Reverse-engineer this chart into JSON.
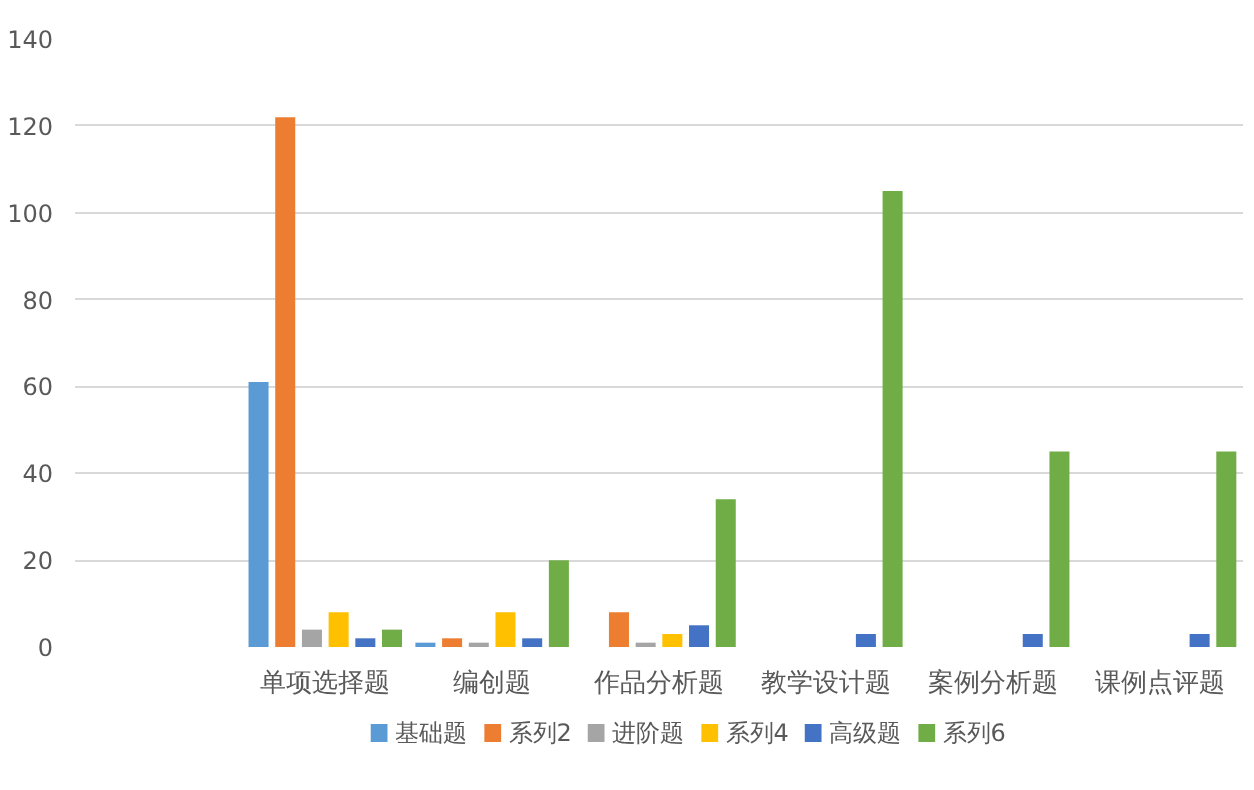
{
  "chart_data": {
    "type": "bar",
    "categories": [
      null,
      "单项选择题",
      "编创题",
      "作品分析题",
      "教学设计题",
      "案例分析题",
      "课例点评题"
    ],
    "series": [
      {
        "name": "基础题",
        "color": "#5b9bd5",
        "values": [
          null,
          61,
          1,
          null,
          null,
          null,
          null
        ]
      },
      {
        "name": "系列2",
        "color": "#ed7d31",
        "values": [
          null,
          122,
          2,
          8,
          null,
          null,
          null
        ]
      },
      {
        "name": "进阶题",
        "color": "#a5a5a5",
        "values": [
          null,
          4,
          1,
          1,
          null,
          null,
          null
        ]
      },
      {
        "name": "系列4",
        "color": "#ffc000",
        "values": [
          null,
          8,
          8,
          3,
          null,
          null,
          null
        ]
      },
      {
        "name": "高级题",
        "color": "#4472c4",
        "values": [
          null,
          2,
          2,
          5,
          3,
          3,
          3
        ]
      },
      {
        "name": "系列6",
        "color": "#70ad47",
        "values": [
          null,
          4,
          20,
          34,
          105,
          45,
          45
        ]
      }
    ],
    "ylim": [
      0,
      140
    ],
    "yticks": [
      0,
      20,
      40,
      60,
      80,
      100,
      120,
      140
    ],
    "grid": "y",
    "legend": "bottom"
  }
}
